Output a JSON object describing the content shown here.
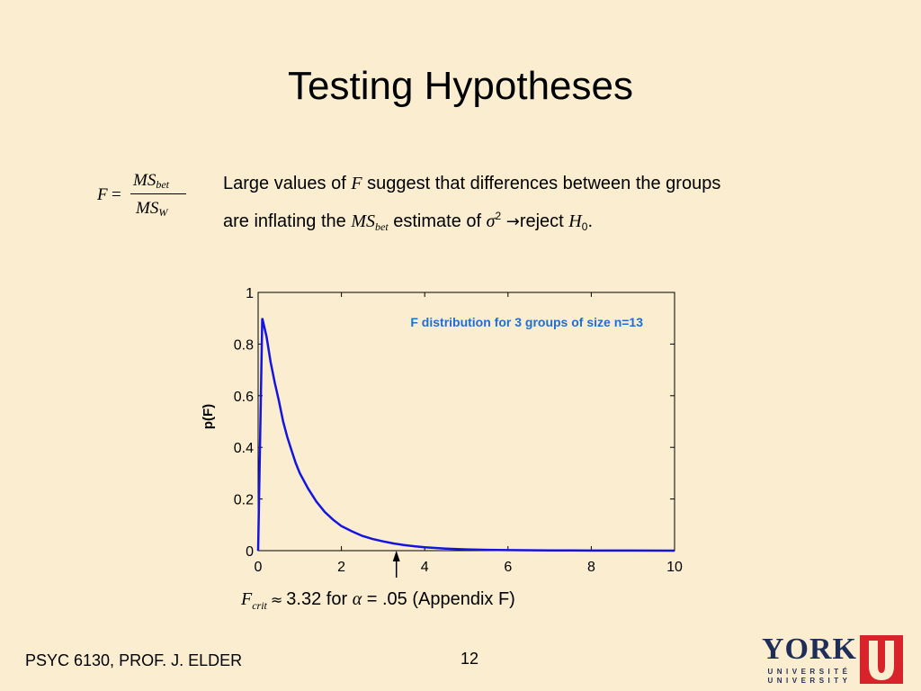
{
  "slide": {
    "title": "Testing Hypotheses",
    "footer_left": "PSYC 6130, PROF. J. ELDER",
    "page_number": "12"
  },
  "formula": {
    "lhs": "F",
    "equals": "=",
    "numerator": "MS",
    "numerator_sub": "bet",
    "denominator": "MS",
    "denominator_sub": "W"
  },
  "statement": {
    "part1": "Large values of ",
    "var_f": "F",
    "part2": " suggest that differences between the groups",
    "part3": "are inflating the ",
    "ms": "MS",
    "ms_sub": "bet",
    "part4": " estimate of ",
    "sigma": "σ",
    "sigma_sup": "2",
    "arrow": "→",
    "part5": "reject ",
    "h": "H",
    "h_sub": "0",
    "end": "."
  },
  "caption": {
    "f": "F",
    "f_sub": "crit",
    "approx": "≈",
    "value_text": "3.32 for ",
    "alpha": "α",
    "alpha_eq": " = .05 (Appendix F)"
  },
  "logo": {
    "name": "YORK",
    "line1": "UNIVERSITÉ",
    "line2": "UNIVERSITY",
    "colors": {
      "navy": "#1f2e58",
      "red": "#d8232a"
    }
  },
  "chart_data": {
    "type": "line",
    "title": "F distribution for 3 groups of size n=13",
    "xlabel": "",
    "ylabel": "p(F)",
    "xlim": [
      0,
      10
    ],
    "ylim": [
      0,
      1
    ],
    "xticks": [
      0,
      2,
      4,
      6,
      8,
      10
    ],
    "xtick_labels": [
      "0",
      "2",
      "4",
      "6",
      "8",
      "10"
    ],
    "yticks": [
      0,
      0.2,
      0.4,
      0.6,
      0.8,
      1
    ],
    "ytick_labels": [
      "0",
      "0.2",
      "0.4",
      "0.6",
      "0.8",
      "1"
    ],
    "grid": false,
    "line_color": "#1414e0",
    "title_color": "#1a6fd8",
    "annotation": {
      "type": "arrow",
      "x": 3.32,
      "direction": "up"
    },
    "series": [
      {
        "x": [
          0,
          0.1,
          0.2,
          0.3,
          0.4,
          0.5,
          0.6,
          0.7,
          0.8,
          0.9,
          1.0,
          1.2,
          1.4,
          1.6,
          1.8,
          2.0,
          2.25,
          2.5,
          2.75,
          3.0,
          3.25,
          3.5,
          3.75,
          4.0,
          4.5,
          5.0,
          5.5,
          6.0,
          7.0,
          8.0,
          9.0,
          10.0
        ],
        "y": [
          0,
          0.9,
          0.83,
          0.73,
          0.65,
          0.58,
          0.5,
          0.44,
          0.39,
          0.34,
          0.3,
          0.24,
          0.19,
          0.15,
          0.12,
          0.095,
          0.075,
          0.057,
          0.045,
          0.036,
          0.028,
          0.022,
          0.017,
          0.013,
          0.008,
          0.005,
          0.003,
          0.002,
          0.001,
          0.0005,
          0.0002,
          0.0001
        ]
      }
    ]
  }
}
